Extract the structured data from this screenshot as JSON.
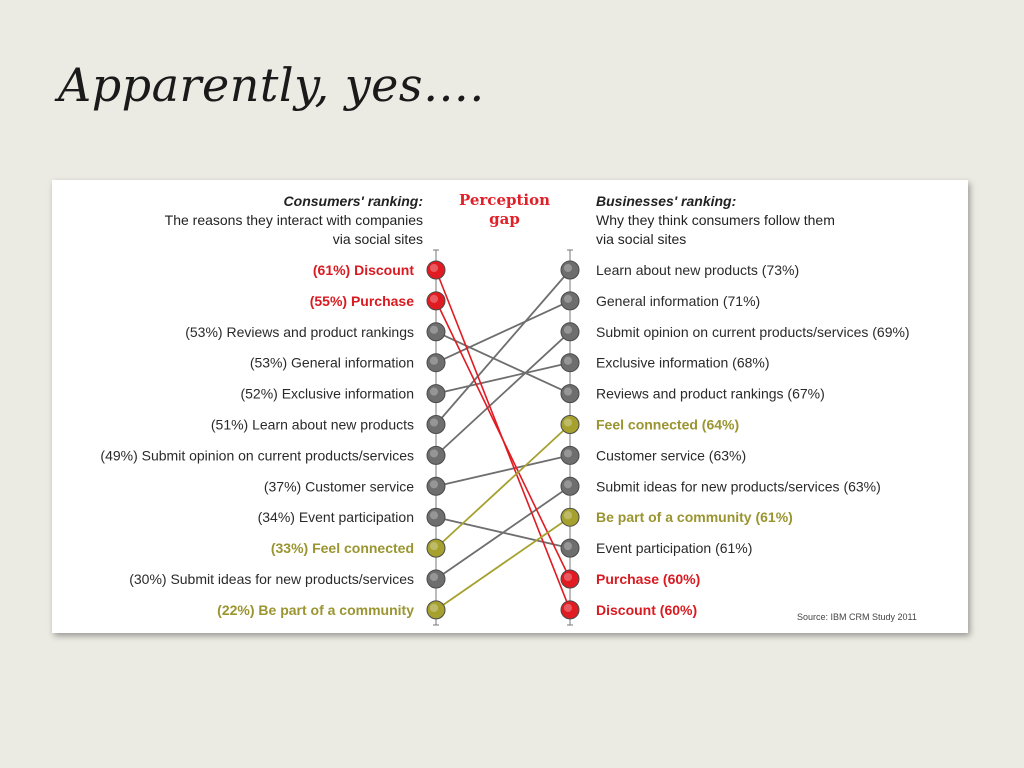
{
  "slide": {
    "title": "Apparently, yes…."
  },
  "chart_data": {
    "type": "slope",
    "left_header": {
      "title": "Consumers' ranking:",
      "line1": "The reasons they interact with companies",
      "line2": "via social sites"
    },
    "center_header": {
      "line1": "Perception",
      "line2": "gap"
    },
    "right_header": {
      "title": "Businesses' ranking:",
      "line1": "Why they think consumers follow them",
      "line2": "via social sites"
    },
    "colors": {
      "red": "#e01b22",
      "olive": "#a6a12f",
      "grey": "#6e6e6e",
      "text_red": "#d91a20",
      "text_olive": "#9a9530"
    },
    "left_items": [
      {
        "label": "(61%) Discount",
        "pct": 61,
        "color": "red",
        "bold": true
      },
      {
        "label": "(55%) Purchase",
        "pct": 55,
        "color": "red",
        "bold": true
      },
      {
        "label": "(53%) Reviews and product rankings",
        "pct": 53,
        "color": "grey",
        "bold": false
      },
      {
        "label": "(53%) General information",
        "pct": 53,
        "color": "grey",
        "bold": false
      },
      {
        "label": "(52%) Exclusive information",
        "pct": 52,
        "color": "grey",
        "bold": false
      },
      {
        "label": "(51%) Learn about new products",
        "pct": 51,
        "color": "grey",
        "bold": false
      },
      {
        "label": "(49%) Submit opinion on current products/services",
        "pct": 49,
        "color": "grey",
        "bold": false
      },
      {
        "label": "(37%) Customer service",
        "pct": 37,
        "color": "grey",
        "bold": false
      },
      {
        "label": "(34%) Event participation",
        "pct": 34,
        "color": "grey",
        "bold": false
      },
      {
        "label": "(33%) Feel connected",
        "pct": 33,
        "color": "olive",
        "bold": true
      },
      {
        "label": "(30%) Submit ideas for new products/services",
        "pct": 30,
        "color": "grey",
        "bold": false
      },
      {
        "label": "(22%) Be part of a community",
        "pct": 22,
        "color": "olive",
        "bold": true
      }
    ],
    "right_items": [
      {
        "label": "Learn about new products (73%)",
        "pct": 73,
        "color": "grey",
        "bold": false
      },
      {
        "label": "General information (71%)",
        "pct": 71,
        "color": "grey",
        "bold": false
      },
      {
        "label": "Submit opinion on current products/services (69%)",
        "pct": 69,
        "color": "grey",
        "bold": false
      },
      {
        "label": "Exclusive information (68%)",
        "pct": 68,
        "color": "grey",
        "bold": false
      },
      {
        "label": "Reviews and product rankings (67%)",
        "pct": 67,
        "color": "grey",
        "bold": false
      },
      {
        "label": "Feel connected (64%)",
        "pct": 64,
        "color": "olive",
        "bold": true
      },
      {
        "label": "Customer service (63%)",
        "pct": 63,
        "color": "grey",
        "bold": false
      },
      {
        "label": "Submit ideas for new products/services (63%)",
        "pct": 63,
        "color": "grey",
        "bold": false
      },
      {
        "label": "Be part of a community (61%)",
        "pct": 61,
        "color": "olive",
        "bold": true
      },
      {
        "label": "Event participation (61%)",
        "pct": 61,
        "color": "grey",
        "bold": false
      },
      {
        "label": "Purchase (60%)",
        "pct": 60,
        "color": "red",
        "bold": true
      },
      {
        "label": "Discount (60%)",
        "pct": 60,
        "color": "red",
        "bold": true
      }
    ],
    "connections": [
      {
        "from": 0,
        "to": 11,
        "color": "red"
      },
      {
        "from": 1,
        "to": 10,
        "color": "red"
      },
      {
        "from": 2,
        "to": 4,
        "color": "grey"
      },
      {
        "from": 3,
        "to": 1,
        "color": "grey"
      },
      {
        "from": 4,
        "to": 3,
        "color": "grey"
      },
      {
        "from": 5,
        "to": 0,
        "color": "grey"
      },
      {
        "from": 6,
        "to": 2,
        "color": "grey"
      },
      {
        "from": 7,
        "to": 6,
        "color": "grey"
      },
      {
        "from": 8,
        "to": 9,
        "color": "grey"
      },
      {
        "from": 9,
        "to": 5,
        "color": "olive"
      },
      {
        "from": 10,
        "to": 7,
        "color": "grey"
      },
      {
        "from": 11,
        "to": 8,
        "color": "olive"
      }
    ],
    "source": "Source: IBM CRM Study 2011"
  }
}
